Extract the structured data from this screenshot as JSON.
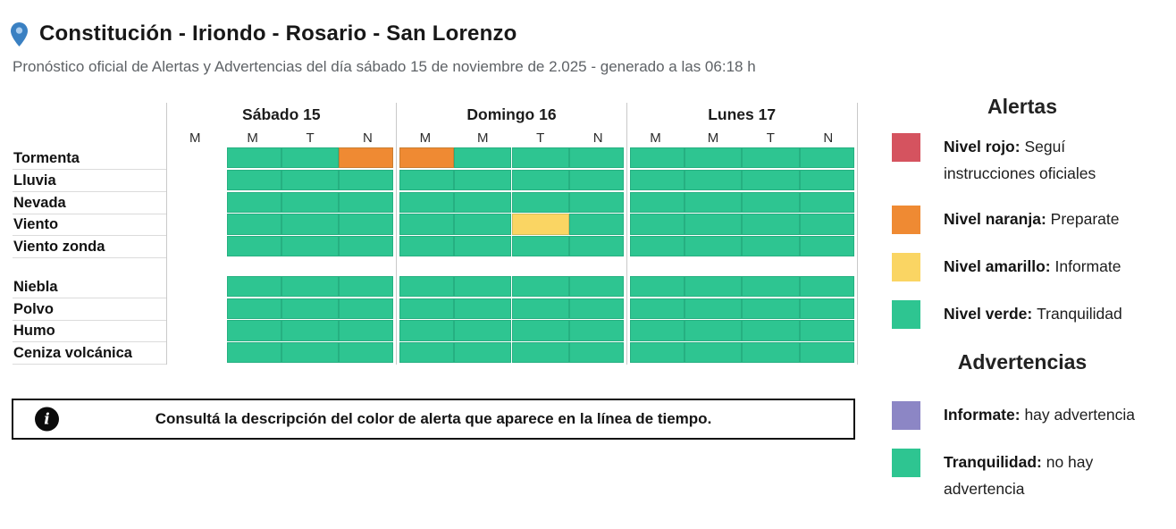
{
  "header": {
    "title": "Constitución - Iriondo - Rosario - San Lorenzo",
    "subtitle": "Pronóstico oficial de Alertas y Advertencias del día sábado 15 de noviembre de 2.025 - generado a las 06:18 h",
    "location_icon": "map-pin"
  },
  "chart_data": {
    "type": "heatmap",
    "days": [
      {
        "label": "Sábado 15",
        "periods": [
          "M",
          "M",
          "T",
          "N"
        ]
      },
      {
        "label": "Domingo 16",
        "periods": [
          "M",
          "M",
          "T",
          "N"
        ]
      },
      {
        "label": "Lunes 17",
        "periods": [
          "M",
          "M",
          "T",
          "N"
        ]
      }
    ],
    "levels": {
      "verde": "#2ec591",
      "amarillo": "#fad563",
      "naranja": "#ef8a33",
      "rojo": "#d5535f"
    },
    "groups": [
      {
        "rows": [
          {
            "label": "Tormenta",
            "cells": [
              [
                "none",
                "verde",
                "verde",
                "naranja"
              ],
              [
                "naranja",
                "verde",
                "verde",
                "verde"
              ],
              [
                "verde",
                "verde",
                "verde",
                "verde"
              ]
            ]
          },
          {
            "label": "Lluvia",
            "cells": [
              [
                "none",
                "verde",
                "verde",
                "verde"
              ],
              [
                "verde",
                "verde",
                "verde",
                "verde"
              ],
              [
                "verde",
                "verde",
                "verde",
                "verde"
              ]
            ]
          },
          {
            "label": "Nevada",
            "cells": [
              [
                "none",
                "verde",
                "verde",
                "verde"
              ],
              [
                "verde",
                "verde",
                "verde",
                "verde"
              ],
              [
                "verde",
                "verde",
                "verde",
                "verde"
              ]
            ]
          },
          {
            "label": "Viento",
            "cells": [
              [
                "none",
                "verde",
                "verde",
                "verde"
              ],
              [
                "verde",
                "verde",
                "amarillo",
                "verde"
              ],
              [
                "verde",
                "verde",
                "verde",
                "verde"
              ]
            ]
          },
          {
            "label": "Viento zonda",
            "cells": [
              [
                "none",
                "verde",
                "verde",
                "verde"
              ],
              [
                "verde",
                "verde",
                "verde",
                "verde"
              ],
              [
                "verde",
                "verde",
                "verde",
                "verde"
              ]
            ]
          }
        ]
      },
      {
        "rows": [
          {
            "label": "Niebla",
            "cells": [
              [
                "none",
                "verde",
                "verde",
                "verde"
              ],
              [
                "verde",
                "verde",
                "verde",
                "verde"
              ],
              [
                "verde",
                "verde",
                "verde",
                "verde"
              ]
            ]
          },
          {
            "label": "Polvo",
            "cells": [
              [
                "none",
                "verde",
                "verde",
                "verde"
              ],
              [
                "verde",
                "verde",
                "verde",
                "verde"
              ],
              [
                "verde",
                "verde",
                "verde",
                "verde"
              ]
            ]
          },
          {
            "label": "Humo",
            "cells": [
              [
                "none",
                "verde",
                "verde",
                "verde"
              ],
              [
                "verde",
                "verde",
                "verde",
                "verde"
              ],
              [
                "verde",
                "verde",
                "verde",
                "verde"
              ]
            ]
          },
          {
            "label": "Ceniza volcánica",
            "cells": [
              [
                "none",
                "verde",
                "verde",
                "verde"
              ],
              [
                "verde",
                "verde",
                "verde",
                "verde"
              ],
              [
                "verde",
                "verde",
                "verde",
                "verde"
              ]
            ]
          }
        ]
      }
    ]
  },
  "legend": {
    "alerts": {
      "title": "Alertas",
      "items": [
        {
          "color": "#d5535f",
          "term": "Nivel rojo:",
          "desc": "Seguí instrucciones oficiales"
        },
        {
          "color": "#ef8a33",
          "term": "Nivel naranja:",
          "desc": "Preparate"
        },
        {
          "color": "#fad563",
          "term": "Nivel amarillo:",
          "desc": "Informate"
        },
        {
          "color": "#2ec591",
          "term": "Nivel verde:",
          "desc": "Tranquilidad"
        }
      ]
    },
    "warnings": {
      "title": "Advertencias",
      "items": [
        {
          "color": "#8c86c5",
          "term": "Informate:",
          "desc": "hay advertencia"
        },
        {
          "color": "#2ec591",
          "term": "Tranquilidad:",
          "desc": "no hay advertencia"
        }
      ]
    }
  },
  "notice": {
    "icon": "info",
    "text": "Consultá la descripción del color de alerta que aparece en la línea de tiempo."
  }
}
